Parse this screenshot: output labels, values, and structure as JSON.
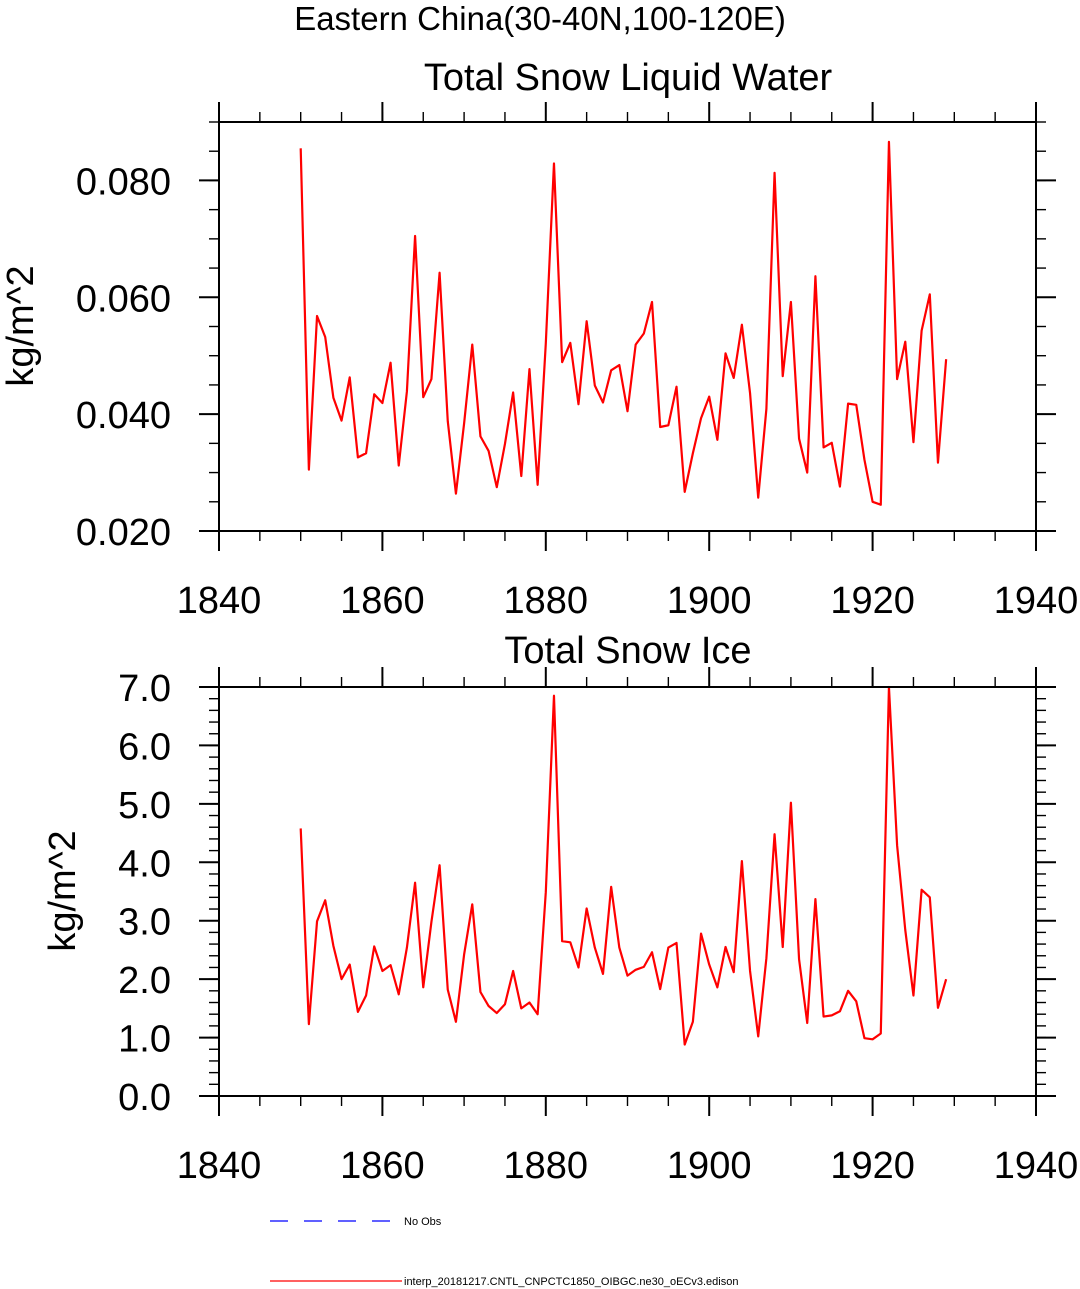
{
  "figure_title": "Eastern China(30-40N,100-120E)",
  "legend": [
    {
      "label": "No Obs",
      "color": "#0000ff",
      "dash": "dashed"
    },
    {
      "label": "interp_20181217.CNTL_CNPCTC1850_OIBGC.ne30_oECv3.edison",
      "color": "#ff0000",
      "dash": "solid"
    }
  ],
  "chart_data": [
    {
      "type": "line",
      "title": "Total Snow Liquid Water",
      "xlabel": "",
      "ylabel": "kg/m^2",
      "xlim": [
        1840,
        1940
      ],
      "ylim": [
        0.02,
        0.09
      ],
      "xticks": [
        1840,
        1860,
        1880,
        1900,
        1920,
        1940
      ],
      "xtick_labels": [
        "1840",
        "1860",
        "1880",
        "1900",
        "1920",
        "1940"
      ],
      "yticks": [
        0.02,
        0.04,
        0.06,
        0.08
      ],
      "ytick_labels": [
        "0.020",
        "0.040",
        "0.060",
        "0.080"
      ],
      "yminor_step": 0.005,
      "xminor_step": 5,
      "grid": false,
      "series": [
        {
          "name": "interp_20181217.CNTL_CNPCTC1850_OIBGC.ne30_oECv3.edison",
          "color": "#ff0000",
          "x_start": 1850,
          "x_step": 1,
          "values": [
            0.0855,
            0.0305,
            0.0568,
            0.0532,
            0.0428,
            0.0389,
            0.0463,
            0.0326,
            0.0333,
            0.0434,
            0.0419,
            0.0488,
            0.0312,
            0.0439,
            0.0705,
            0.0429,
            0.046,
            0.0642,
            0.0388,
            0.0264,
            0.0384,
            0.0519,
            0.0362,
            0.0337,
            0.0275,
            0.0349,
            0.0437,
            0.0294,
            0.0477,
            0.0279,
            0.0521,
            0.0829,
            0.0489,
            0.0522,
            0.0417,
            0.0559,
            0.0449,
            0.042,
            0.0475,
            0.0484,
            0.0405,
            0.0519,
            0.0538,
            0.0592,
            0.0378,
            0.0381,
            0.0447,
            0.0267,
            0.0333,
            0.0393,
            0.043,
            0.0356,
            0.0504,
            0.0462,
            0.0553,
            0.0436,
            0.0257,
            0.0409,
            0.0813,
            0.0465,
            0.0592,
            0.0358,
            0.03,
            0.0636,
            0.0343,
            0.0351,
            0.0276,
            0.0418,
            0.0416,
            0.0322,
            0.025,
            0.0245,
            0.0866,
            0.046,
            0.0524,
            0.0352,
            0.0543,
            0.0605,
            0.0317,
            0.0494
          ]
        }
      ]
    },
    {
      "type": "line",
      "title": "Total Snow Ice",
      "xlabel": "",
      "ylabel": "kg/m^2",
      "xlim": [
        1840,
        1940
      ],
      "ylim": [
        0.0,
        7.0
      ],
      "xticks": [
        1840,
        1860,
        1880,
        1900,
        1920,
        1940
      ],
      "xtick_labels": [
        "1840",
        "1860",
        "1880",
        "1900",
        "1920",
        "1940"
      ],
      "yticks": [
        0,
        1,
        2,
        3,
        4,
        5,
        6,
        7
      ],
      "ytick_labels": [
        "0.0",
        "1.0",
        "2.0",
        "3.0",
        "4.0",
        "5.0",
        "6.0",
        "7.0"
      ],
      "yminor_step": 0.2,
      "xminor_step": 5,
      "grid": false,
      "series": [
        {
          "name": "interp_20181217.CNTL_CNPCTC1850_OIBGC.ne30_oECv3.edison",
          "color": "#ff0000",
          "x_start": 1850,
          "x_step": 1,
          "values": [
            4.58,
            1.23,
            2.99,
            3.35,
            2.57,
            2.0,
            2.25,
            1.44,
            1.72,
            2.56,
            2.14,
            2.24,
            1.74,
            2.54,
            3.65,
            1.86,
            2.98,
            3.95,
            1.82,
            1.27,
            2.42,
            3.28,
            1.78,
            1.54,
            1.42,
            1.57,
            2.14,
            1.5,
            1.6,
            1.4,
            3.49,
            6.85,
            2.65,
            2.63,
            2.2,
            3.21,
            2.54,
            2.09,
            3.58,
            2.54,
            2.06,
            2.16,
            2.21,
            2.46,
            1.83,
            2.54,
            2.62,
            0.88,
            1.27,
            2.78,
            2.25,
            1.86,
            2.55,
            2.12,
            4.02,
            2.14,
            1.02,
            2.36,
            4.48,
            2.55,
            5.02,
            2.34,
            1.25,
            3.37,
            1.36,
            1.38,
            1.45,
            1.8,
            1.62,
            0.99,
            0.97,
            1.07,
            7.0,
            4.29,
            2.84,
            1.72,
            3.53,
            3.4,
            1.51,
            2.0
          ]
        }
      ]
    }
  ]
}
